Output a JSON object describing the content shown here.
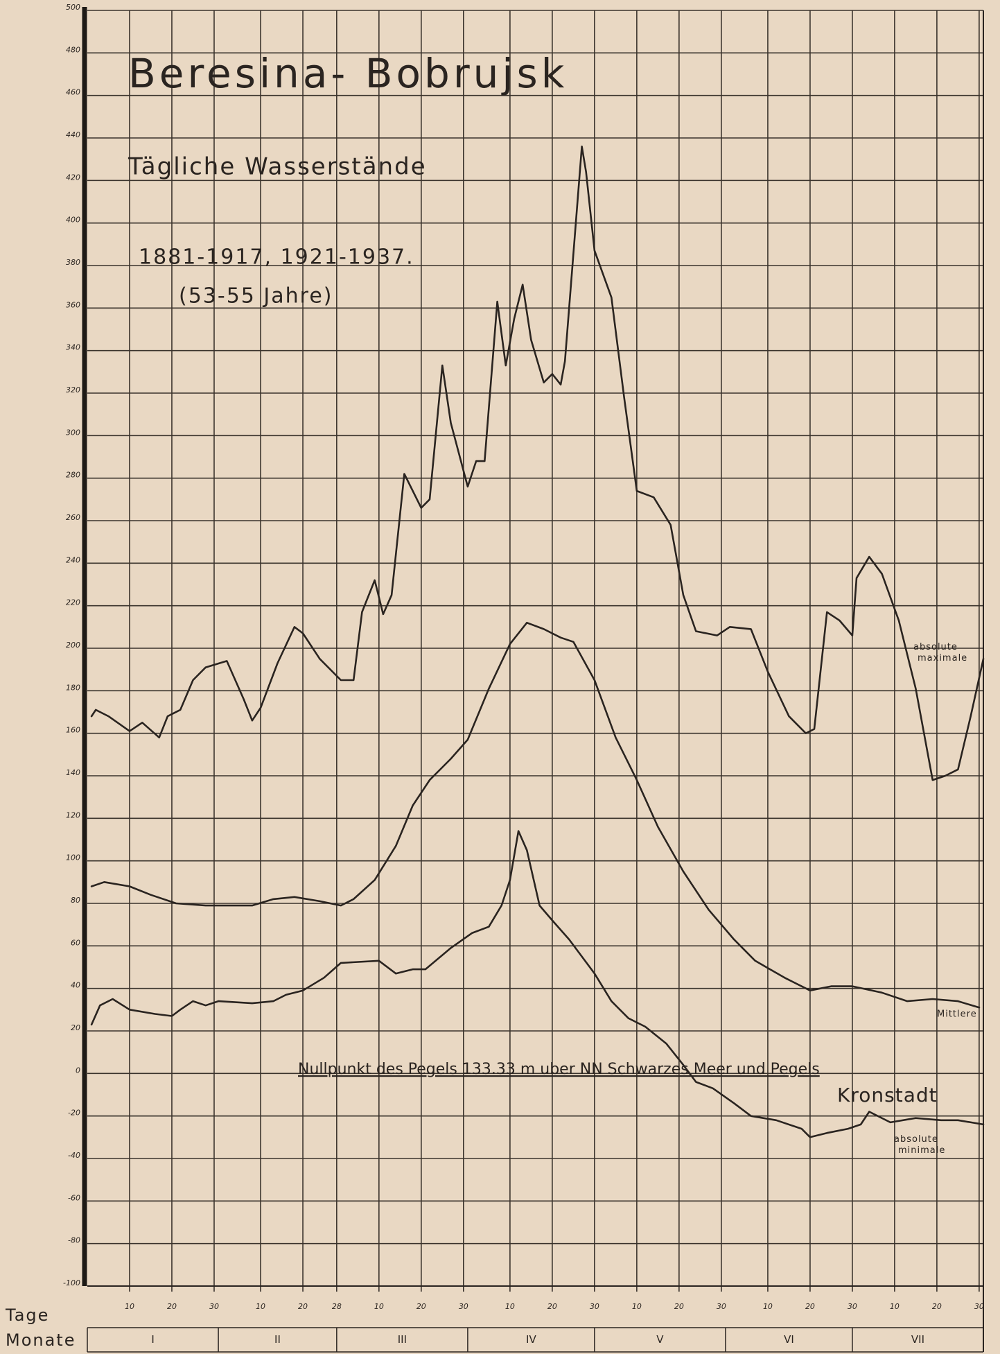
{
  "chart_data": {
    "type": "line",
    "title": "Beresina- Bobrujsk",
    "subtitle": "Tägliche Wasserstände",
    "period": "1881-1917, 1921-1937.",
    "period_note": "(53-55 Jahre)",
    "annotation": "Nullpunkt des Pegels 133.33 m uber NN Schwarzes Meer und Pegels",
    "annotation_2": "Kronstadt",
    "x_label": "Tage",
    "month_label": "Monate",
    "xlim": [
      0,
      212
    ],
    "ylim": [
      -100,
      500
    ],
    "grid": true,
    "yticks": [
      500,
      480,
      460,
      440,
      420,
      400,
      380,
      360,
      340,
      320,
      300,
      280,
      260,
      240,
      220,
      200,
      180,
      160,
      140,
      120,
      100,
      80,
      60,
      40,
      20,
      0,
      -20,
      -40,
      -60,
      -80,
      -100
    ],
    "xticks": [
      {
        "value": 10,
        "label": "10"
      },
      {
        "value": 20,
        "label": "20"
      },
      {
        "value": 30,
        "label": "30"
      },
      {
        "value": 41,
        "label": "10"
      },
      {
        "value": 51,
        "label": "20"
      },
      {
        "value": 59,
        "label": "28"
      },
      {
        "value": 69,
        "label": "10"
      },
      {
        "value": 79,
        "label": "20"
      },
      {
        "value": 89,
        "label": "30"
      },
      {
        "value": 100,
        "label": "10"
      },
      {
        "value": 110,
        "label": "20"
      },
      {
        "value": 120,
        "label": "30"
      },
      {
        "value": 130,
        "label": "10"
      },
      {
        "value": 140,
        "label": "20"
      },
      {
        "value": 150,
        "label": "30"
      },
      {
        "value": 161,
        "label": "10"
      },
      {
        "value": 171,
        "label": "20"
      },
      {
        "value": 181,
        "label": "30"
      },
      {
        "value": 191,
        "label": "10"
      },
      {
        "value": 201,
        "label": "20"
      },
      {
        "value": 211,
        "label": "30"
      }
    ],
    "month_ticks": [
      {
        "value": 0,
        "label": "I"
      },
      {
        "value": 31,
        "label": "II"
      },
      {
        "value": 59,
        "label": "III"
      },
      {
        "value": 90,
        "label": "IV"
      },
      {
        "value": 120,
        "label": "V"
      },
      {
        "value": 151,
        "label": "VI"
      },
      {
        "value": 181,
        "label": "VII"
      }
    ],
    "series": [
      {
        "name": "absolute maximale",
        "color": "#2a2420",
        "x": [
          1,
          2,
          5,
          10,
          13,
          17,
          19,
          22,
          25,
          28,
          33,
          37,
          39,
          41,
          45,
          49,
          51,
          55,
          60,
          63,
          65,
          68,
          70,
          72,
          75,
          79,
          81,
          84,
          86,
          90,
          92,
          94,
          97,
          99,
          101,
          103,
          105,
          108,
          110,
          112,
          113,
          117,
          118,
          120,
          124,
          127,
          130,
          134,
          138,
          141,
          144,
          149,
          152,
          157,
          161,
          166,
          170,
          172,
          175,
          178,
          181,
          182,
          185,
          188,
          192,
          196,
          200,
          203,
          206,
          209,
          212
        ],
        "values": [
          168,
          171,
          168,
          161,
          165,
          158,
          168,
          171,
          185,
          191,
          194,
          176,
          166,
          172,
          193,
          210,
          207,
          195,
          185,
          185,
          217,
          232,
          216,
          225,
          282,
          266,
          270,
          333,
          306,
          276,
          288,
          288,
          363,
          333,
          355,
          371,
          345,
          325,
          329,
          324,
          335,
          436,
          424,
          387,
          365,
          318,
          274,
          271,
          258,
          225,
          208,
          206,
          210,
          209,
          189,
          168,
          160,
          162,
          217,
          213,
          206,
          233,
          243,
          235,
          213,
          181,
          138,
          140,
          143,
          168,
          195
        ]
      },
      {
        "name": "Mittlere",
        "color": "#2a2420",
        "x": [
          1,
          4,
          10,
          15,
          21,
          28,
          39,
          44,
          49,
          55,
          60,
          63,
          68,
          73,
          77,
          81,
          86,
          90,
          95,
          100,
          104,
          108,
          112,
          115,
          120,
          125,
          130,
          135,
          141,
          147,
          153,
          158,
          165,
          171,
          176,
          181,
          188,
          194,
          200,
          206,
          211
        ],
        "values": [
          88,
          90,
          88,
          84,
          80,
          79,
          79,
          82,
          83,
          81,
          79,
          82,
          91,
          107,
          126,
          138,
          148,
          157,
          181,
          202,
          212,
          209,
          205,
          203,
          185,
          158,
          138,
          116,
          95,
          77,
          63,
          53,
          45,
          39,
          41,
          41,
          38,
          34,
          35,
          34,
          31
        ]
      },
      {
        "name": "absolute minimale",
        "color": "#2a2420",
        "x": [
          1,
          3,
          6,
          10,
          16,
          20,
          22,
          25,
          28,
          31,
          39,
          44,
          47,
          51,
          56,
          60,
          69,
          73,
          77,
          80,
          86,
          91,
          95,
          98,
          100,
          102,
          104,
          107,
          110,
          114,
          120,
          124,
          128,
          132,
          137,
          141,
          144,
          148,
          153,
          157,
          163,
          169,
          171,
          175,
          180,
          183,
          185,
          190,
          196,
          202,
          206,
          212
        ],
        "values": [
          23,
          32,
          35,
          30,
          28,
          27,
          30,
          34,
          32,
          34,
          33,
          34,
          37,
          39,
          45,
          52,
          53,
          47,
          49,
          49,
          59,
          66,
          69,
          79,
          91,
          114,
          105,
          79,
          72,
          63,
          47,
          34,
          26,
          22,
          14,
          4,
          -4,
          -7,
          -14,
          -20,
          -22,
          -26,
          -30,
          -28,
          -26,
          -24,
          -18,
          -23,
          -21,
          -22,
          -22,
          -24
        ]
      }
    ]
  }
}
